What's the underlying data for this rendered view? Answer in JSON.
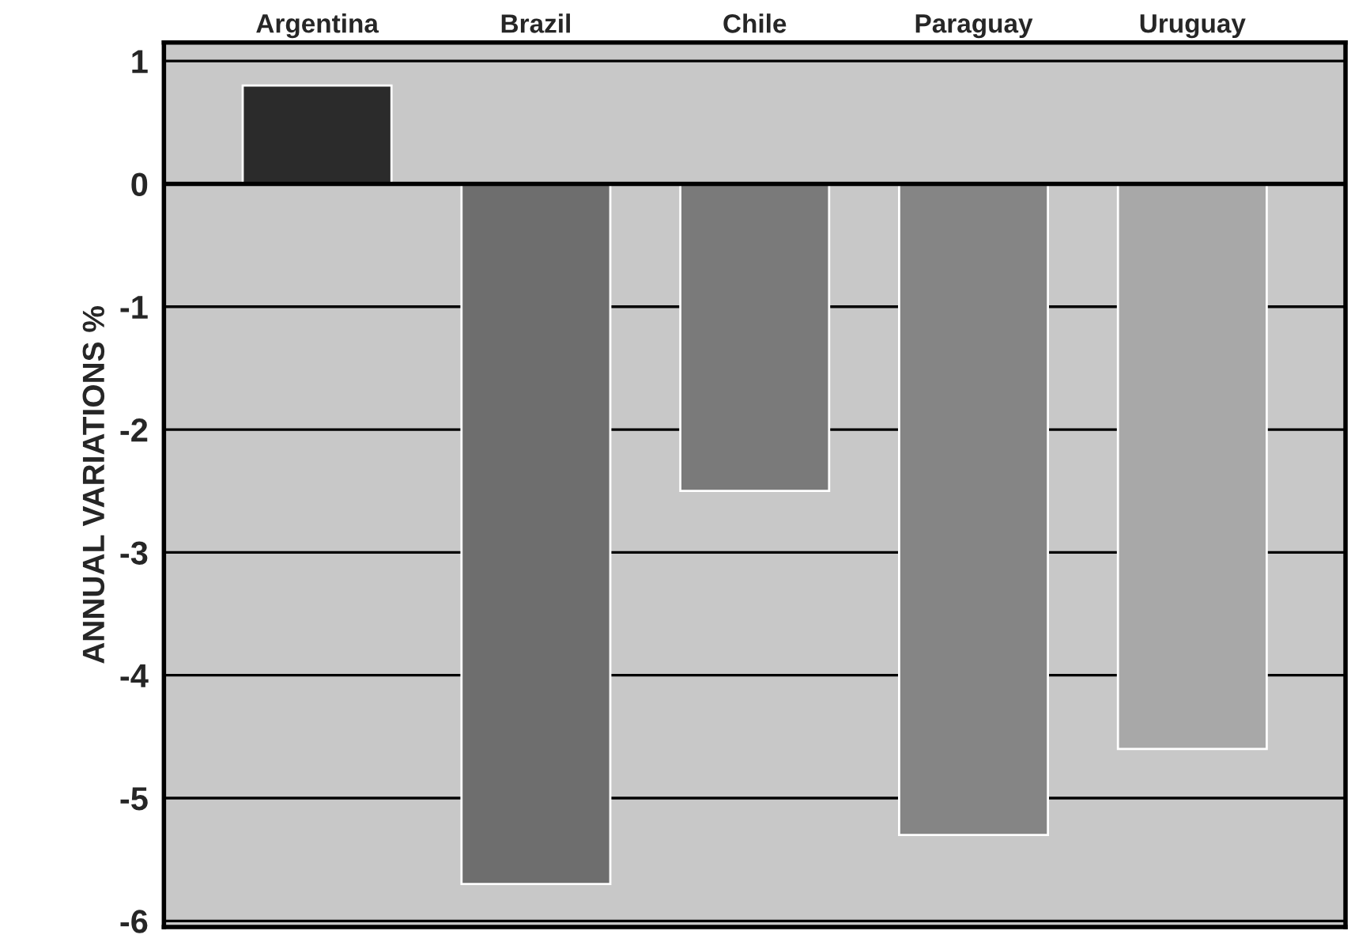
{
  "chart_data": {
    "type": "bar",
    "ylabel": "ANNUAL VARIATIONS %",
    "categories": [
      "Argentina",
      "Brazil",
      "Chile",
      "Paraguay",
      "Uruguay"
    ],
    "values": [
      0.8,
      -5.7,
      -2.5,
      -5.3,
      -4.6
    ],
    "colors": [
      "#2b2b2b",
      "#6e6e6e",
      "#7a7a7a",
      "#858585",
      "#a8a8a8"
    ],
    "ylim": [
      -6.05,
      1.15
    ],
    "yticks": [
      -6,
      -5,
      -4,
      -3,
      -2,
      -1,
      0,
      1
    ],
    "grid": "y"
  }
}
